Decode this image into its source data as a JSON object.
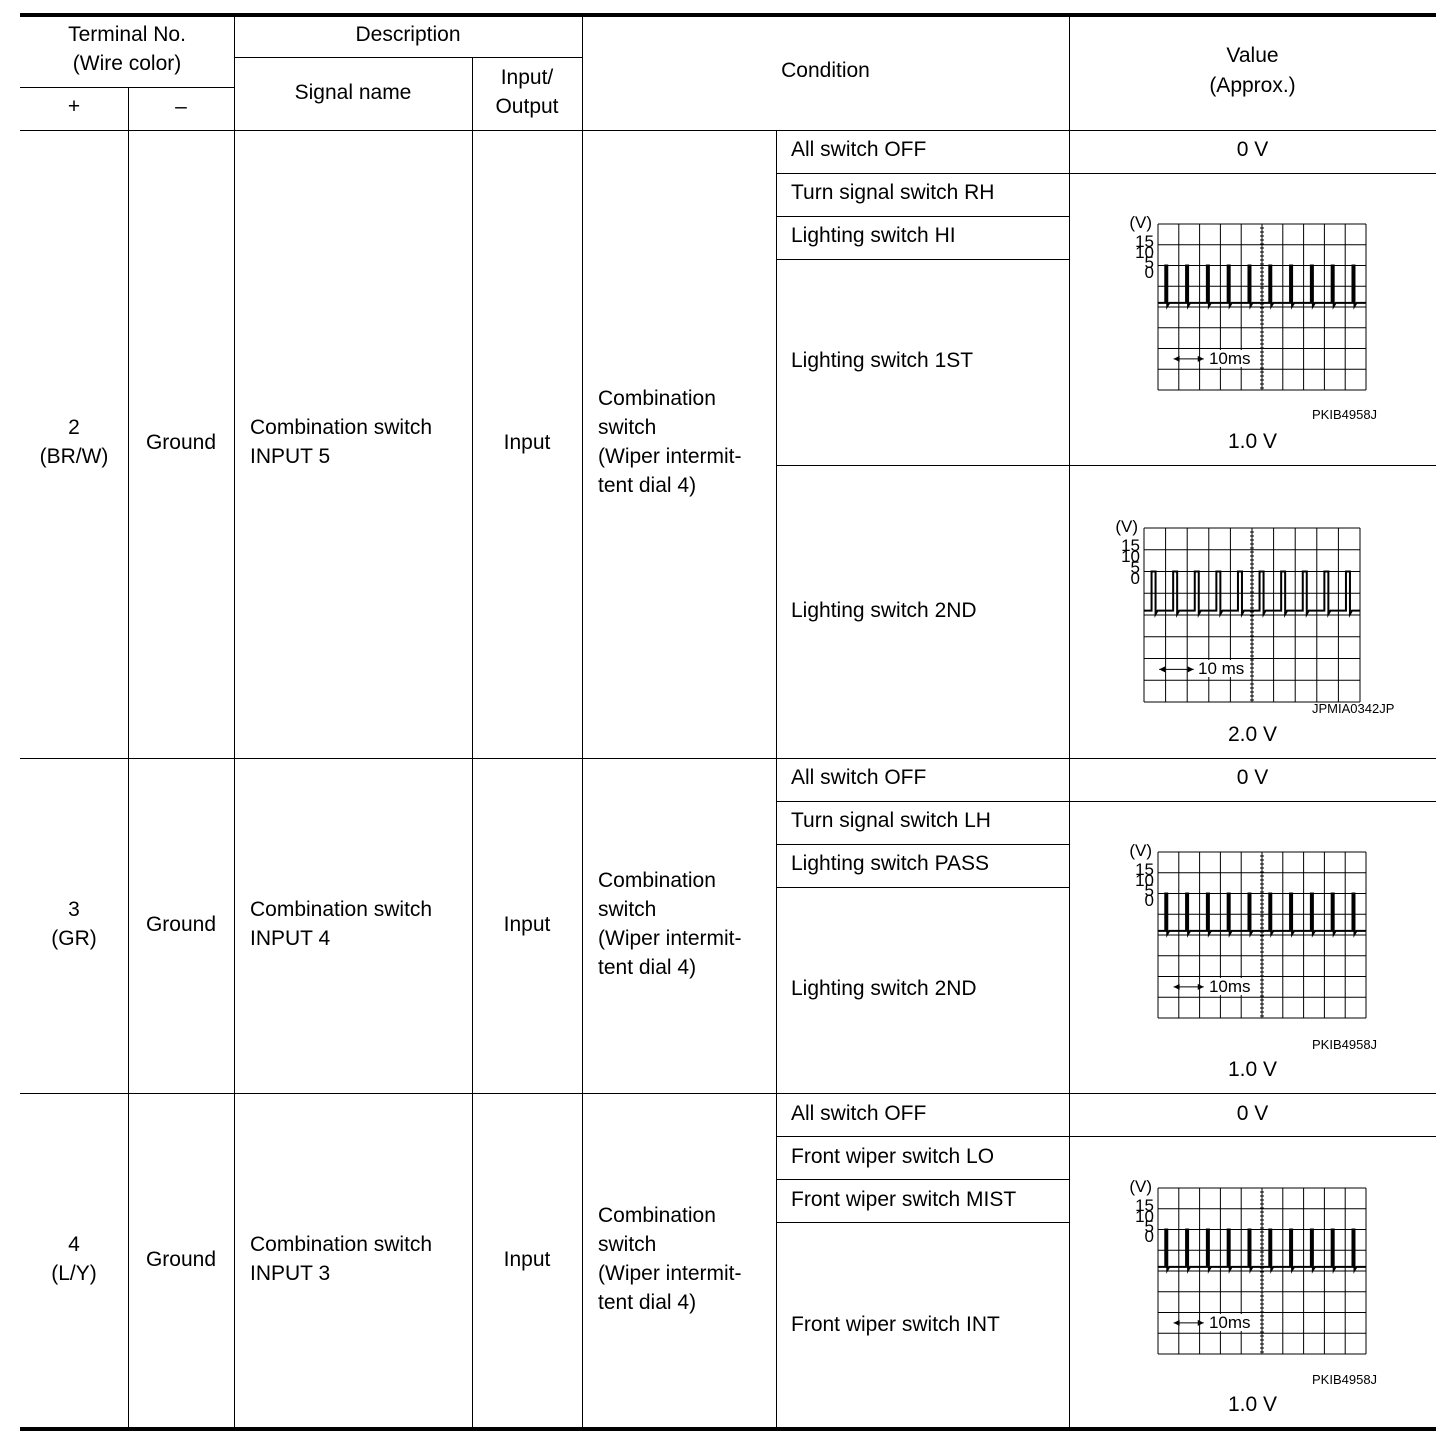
{
  "header": {
    "terminal_no": "Terminal No.",
    "wire_color": "(Wire color)",
    "plus": "+",
    "minus": "–",
    "description": "Description",
    "signal_name": "Signal name",
    "input_output_1": "Input/",
    "input_output_2": "Output",
    "condition": "Condition",
    "value_1": "Value",
    "value_2": "(Approx.)"
  },
  "scope": {
    "y_unit": "(V)",
    "y_ticks": [
      "15",
      "10",
      "5",
      "0"
    ],
    "timebase_a": "10ms",
    "timebase_b": "10 ms",
    "code_a": "PKIB4958J",
    "code_b": "JPMIA0342JP"
  },
  "rows": [
    {
      "terminal": "2",
      "wire": "(BR/W)",
      "ground": "Ground",
      "signal_1": "Combination switch",
      "signal_2": "INPUT 5",
      "io": "Input",
      "cond_1": "Combination",
      "cond_2": "switch",
      "cond_3": "(Wiper intermit-",
      "cond_4": "tent dial 4)",
      "sub": [
        "All switch OFF",
        "Turn signal switch RH",
        "Lighting switch HI",
        "Lighting switch 1ST",
        "Lighting switch 2ND"
      ],
      "values": [
        "0 V",
        "1.0 V",
        "2.0 V"
      ]
    },
    {
      "terminal": "3",
      "wire": "(GR)",
      "ground": "Ground",
      "signal_1": "Combination switch",
      "signal_2": "INPUT 4",
      "io": "Input",
      "cond_1": "Combination",
      "cond_2": "switch",
      "cond_3": "(Wiper intermit-",
      "cond_4": "tent dial 4)",
      "sub": [
        "All switch OFF",
        "Turn signal switch LH",
        "Lighting switch PASS",
        "Lighting switch 2ND"
      ],
      "values": [
        "0 V",
        "1.0 V"
      ]
    },
    {
      "terminal": "4",
      "wire": "(L/Y)",
      "ground": "Ground",
      "signal_1": "Combination switch",
      "signal_2": "INPUT 3",
      "io": "Input",
      "cond_1": "Combination",
      "cond_2": "switch",
      "cond_3": "(Wiper intermit-",
      "cond_4": "tent dial 4)",
      "sub": [
        "All switch OFF",
        "Front wiper switch LO",
        "Front wiper switch MIST",
        "Front wiper switch INT"
      ],
      "values": [
        "0 V",
        "1.0 V"
      ]
    }
  ]
}
